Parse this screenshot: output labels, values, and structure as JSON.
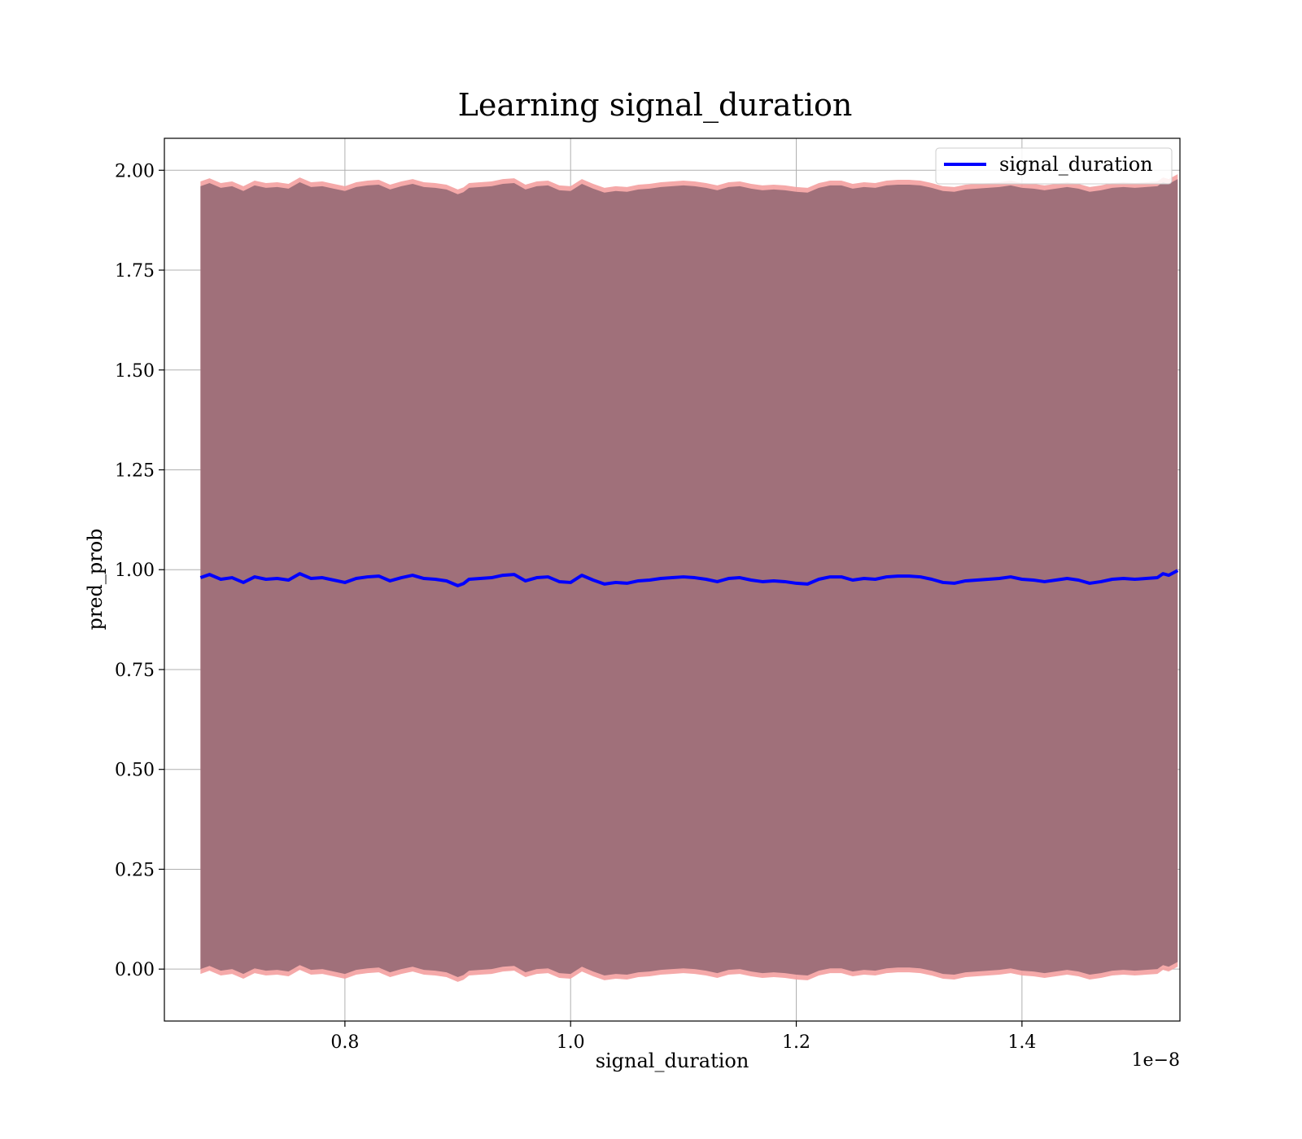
{
  "chart_data": {
    "type": "line",
    "title": "Learning signal_duration",
    "xlabel": "signal_duration",
    "ylabel": "pred_prob",
    "x_offset_label": "1e−8",
    "xlim": [
      0.64,
      1.54
    ],
    "ylim": [
      -0.13,
      2.08
    ],
    "x_ticks": [
      0.8,
      1.0,
      1.2,
      1.4
    ],
    "x_tick_labels": [
      "0.8",
      "1.0",
      "1.2",
      "1.4"
    ],
    "y_ticks": [
      0.0,
      0.25,
      0.5,
      0.75,
      1.0,
      1.25,
      1.5,
      1.75,
      2.0
    ],
    "y_tick_labels": [
      "0.00",
      "0.25",
      "0.50",
      "0.75",
      "1.00",
      "1.25",
      "1.50",
      "1.75",
      "2.00"
    ],
    "grid": true,
    "legend": {
      "placement": "upper right",
      "entries": [
        "signal_duration"
      ]
    },
    "colors": {
      "line": "#0000ff",
      "band_inner": "#a0707a",
      "band_outer": "#f4a0a0"
    },
    "series": [
      {
        "name": "signal_duration",
        "x": [
          0.672,
          0.68,
          0.69,
          0.7,
          0.71,
          0.72,
          0.73,
          0.74,
          0.75,
          0.76,
          0.77,
          0.78,
          0.79,
          0.8,
          0.81,
          0.82,
          0.83,
          0.84,
          0.85,
          0.86,
          0.87,
          0.88,
          0.89,
          0.9,
          0.905,
          0.91,
          0.92,
          0.93,
          0.94,
          0.95,
          0.96,
          0.97,
          0.98,
          0.99,
          1.0,
          1.01,
          1.02,
          1.03,
          1.04,
          1.05,
          1.06,
          1.07,
          1.08,
          1.09,
          1.1,
          1.11,
          1.12,
          1.13,
          1.14,
          1.15,
          1.16,
          1.17,
          1.18,
          1.19,
          1.2,
          1.21,
          1.22,
          1.23,
          1.24,
          1.25,
          1.26,
          1.27,
          1.28,
          1.29,
          1.3,
          1.31,
          1.32,
          1.33,
          1.34,
          1.35,
          1.36,
          1.37,
          1.38,
          1.39,
          1.4,
          1.41,
          1.42,
          1.43,
          1.44,
          1.45,
          1.46,
          1.47,
          1.48,
          1.49,
          1.5,
          1.51,
          1.52,
          1.525,
          1.53,
          1.538
        ],
        "y": [
          0.98,
          0.988,
          0.976,
          0.98,
          0.968,
          0.982,
          0.976,
          0.978,
          0.974,
          0.99,
          0.978,
          0.98,
          0.974,
          0.968,
          0.978,
          0.982,
          0.984,
          0.972,
          0.98,
          0.986,
          0.978,
          0.976,
          0.972,
          0.96,
          0.965,
          0.976,
          0.978,
          0.98,
          0.986,
          0.988,
          0.972,
          0.98,
          0.982,
          0.97,
          0.968,
          0.986,
          0.974,
          0.964,
          0.968,
          0.966,
          0.972,
          0.974,
          0.978,
          0.98,
          0.982,
          0.98,
          0.976,
          0.97,
          0.978,
          0.98,
          0.974,
          0.97,
          0.972,
          0.97,
          0.966,
          0.964,
          0.976,
          0.982,
          0.982,
          0.974,
          0.978,
          0.976,
          0.982,
          0.984,
          0.984,
          0.982,
          0.976,
          0.968,
          0.966,
          0.972,
          0.974,
          0.976,
          0.978,
          0.982,
          0.976,
          0.974,
          0.97,
          0.974,
          0.978,
          0.974,
          0.966,
          0.97,
          0.976,
          0.978,
          0.976,
          0.978,
          0.98,
          0.99,
          0.986,
          0.998
        ]
      }
    ],
    "band": {
      "lower_offset": -0.98,
      "upper_offset": 0.98,
      "outer_margin": 0.012
    }
  }
}
